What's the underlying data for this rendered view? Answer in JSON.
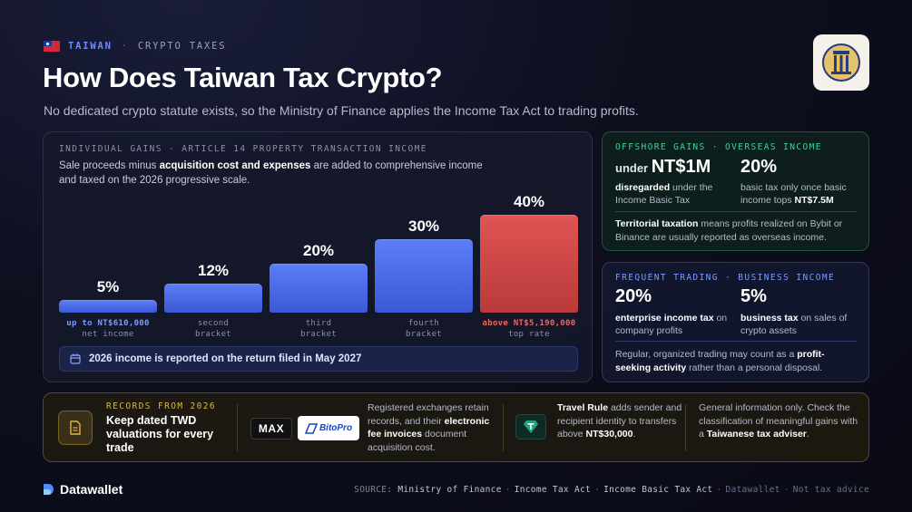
{
  "header": {
    "country": "TAIWAN",
    "section": "CRYPTO TAXES",
    "title": "How Does Taiwan Tax Crypto?",
    "subtitle": "No dedicated crypto statute exists, so the Ministry of Finance applies the Income Tax Act to trading profits.",
    "separator": "·",
    "logo_icon": "ministry-of-finance-seal"
  },
  "individual": {
    "label": "INDIVIDUAL GAINS · ARTICLE 14 PROPERTY TRANSACTION INCOME",
    "desc_pre": "Sale proceeds minus ",
    "desc_bold": "acquisition cost and expenses",
    "desc_post": " are added to comprehensive income and taxed on the 2026 progressive scale.",
    "note_bold": "2026 income is reported on the return filed in May 2027",
    "note_icon": "calendar-icon"
  },
  "chart_data": {
    "type": "bar",
    "categories": [
      "up to NT$610,000 net income",
      "second bracket",
      "third bracket",
      "fourth bracket",
      "above NT$5,190,000 top rate"
    ],
    "values": [
      5,
      12,
      20,
      30,
      40
    ],
    "value_labels": [
      "5%",
      "12%",
      "20%",
      "30%",
      "40%"
    ],
    "caption_line1": [
      "up to NT$610,000",
      "second",
      "third",
      "fourth",
      "above NT$5,190,000"
    ],
    "caption_line2": [
      "net income",
      "bracket",
      "bracket",
      "bracket",
      "top rate"
    ],
    "colors": [
      "#4a6ae8",
      "#4a6ae8",
      "#4a6ae8",
      "#4a6ae8",
      "#d24848"
    ],
    "title": "",
    "xlabel": "",
    "ylabel": "",
    "ylim": [
      0,
      40
    ]
  },
  "offshore": {
    "label": "OFFSHORE GAINS · OVERSEAS INCOME",
    "stat1_prefix": "under ",
    "stat1_value": "NT$1M",
    "stat1_desc_bold": "disregarded",
    "stat1_desc_rest": " under the Income Basic Tax",
    "stat2_value": "20%",
    "stat2_desc_pre": "basic tax only once basic income tops ",
    "stat2_desc_bold": "NT$7.5M",
    "body_bold": "Territorial taxation",
    "body_rest": " means profits realized on Bybit or Binance are usually reported as overseas income."
  },
  "frequent": {
    "label": "FREQUENT TRADING · BUSINESS INCOME",
    "stat1_value": "20%",
    "stat1_desc_bold": "enterprise income tax",
    "stat1_desc_rest": " on company profits",
    "stat2_value": "5%",
    "stat2_desc_bold": "business tax",
    "stat2_desc_rest": " on sales of crypto assets",
    "body_pre": "Regular, organized trading may count as a ",
    "body_bold": "profit-seeking activity",
    "body_post": " rather than a personal disposal."
  },
  "records": {
    "label": "RECORDS FROM 2026",
    "title": "Keep dated TWD valuations for every trade",
    "doc_icon": "document-icon",
    "exchange1": "MAX",
    "exchange2": "BitoPro",
    "exchanges_text_pre": "Registered exchanges retain records, and their ",
    "exchanges_text_bold": "electronic fee invoices",
    "exchanges_text_post": " document acquisition cost.",
    "travel_icon": "tether-icon",
    "travel_bold": "Travel Rule",
    "travel_text": " adds sender and recipient identity to transfers above ",
    "travel_amount": "NT$30,000",
    "travel_end": ".",
    "general_pre": "General information only. Check the classification of meaningful gains with a ",
    "general_bold": "Taiwanese tax adviser",
    "general_end": "."
  },
  "footer": {
    "brand": "Datawallet",
    "brand_icon": "datawallet-logo-icon",
    "source_label": "SOURCE:",
    "sources": [
      "Ministry of Finance",
      "Income Tax Act",
      "Income Basic Tax Act"
    ],
    "brand_credit": "Datawallet",
    "disclaimer": "Not tax advice",
    "separator": "·"
  }
}
